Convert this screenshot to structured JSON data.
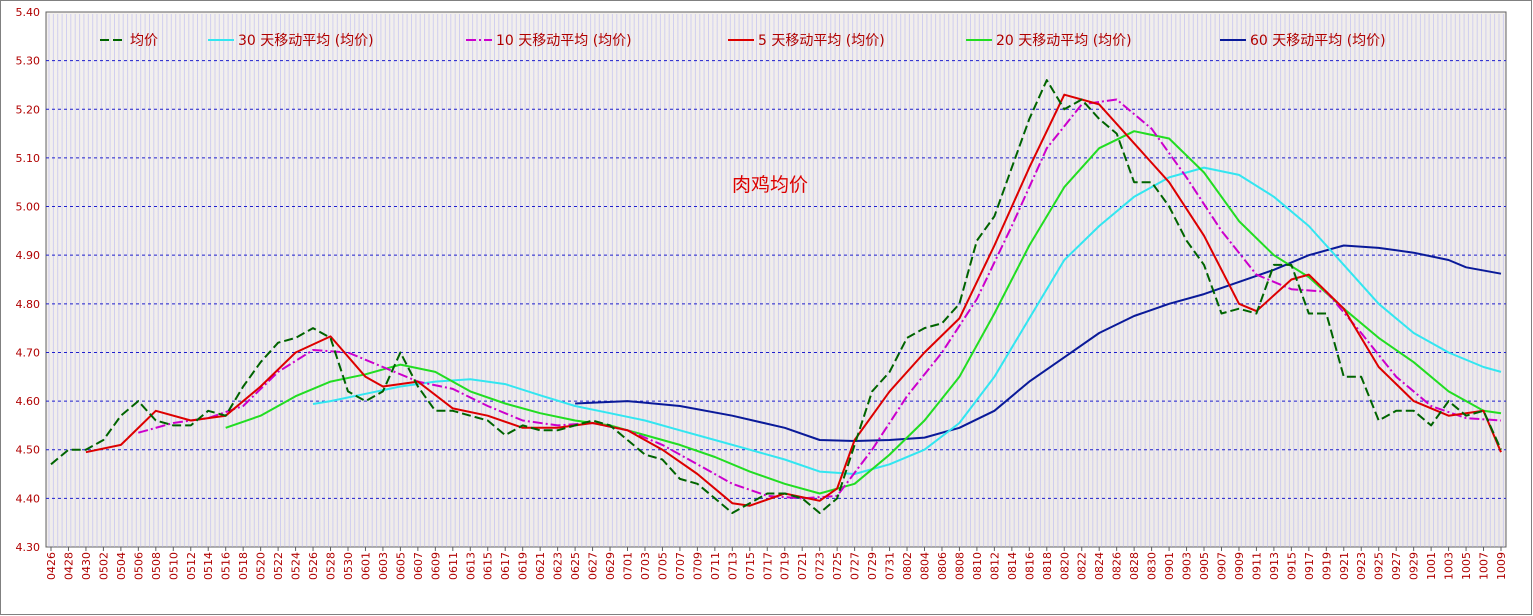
{
  "chart_data": {
    "type": "line",
    "title": "肉鸡均价",
    "ylim": [
      4.3,
      5.4
    ],
    "yticks": [
      "4.30",
      "4.40",
      "4.50",
      "4.60",
      "4.70",
      "4.80",
      "4.90",
      "5.00",
      "5.10",
      "5.20",
      "5.30",
      "5.40"
    ],
    "grid": true,
    "legend_position": "top",
    "colors": {
      "avg": "#006400",
      "ma30": "#33E6F0",
      "ma10": "#CC00CC",
      "ma5": "#DD0000",
      "ma20": "#22DD22",
      "ma60": "#0A1A99",
      "grid": "#1F1FCC",
      "axis_label": "#B00000",
      "title": "#DD0000",
      "bars": "#B4B4F0"
    },
    "x_labels": [
      "0426",
      "0428",
      "0430",
      "0502",
      "0504",
      "0506",
      "0508",
      "0510",
      "0512",
      "0514",
      "0516",
      "0518",
      "0520",
      "0522",
      "0524",
      "0526",
      "0528",
      "0530",
      "0601",
      "0603",
      "0605",
      "0607",
      "0609",
      "0611",
      "0613",
      "0615",
      "0617",
      "0619",
      "0621",
      "0623",
      "0625",
      "0627",
      "0629",
      "0701",
      "0703",
      "0705",
      "0707",
      "0709",
      "0711",
      "0713",
      "0715",
      "0717",
      "0719",
      "0721",
      "0723",
      "0725",
      "0727",
      "0729",
      "0731",
      "0802",
      "0804",
      "0806",
      "0808",
      "0810",
      "0812",
      "0814",
      "0816",
      "0818",
      "0820",
      "0822",
      "0824",
      "0826",
      "0828",
      "0830",
      "0901",
      "0903",
      "0905",
      "0907",
      "0909",
      "0911",
      "0913",
      "0915",
      "0917",
      "0919",
      "0921",
      "0923",
      "0925",
      "0927",
      "0929",
      "1001",
      "1003",
      "1005",
      "1007",
      "1009"
    ],
    "series": [
      {
        "key": "avg",
        "name": "均价",
        "dash": "9,4",
        "width": 2,
        "points": [
          [
            0,
            4.47
          ],
          [
            1,
            4.5
          ],
          [
            2,
            4.5
          ],
          [
            3,
            4.52
          ],
          [
            4,
            4.57
          ],
          [
            5,
            4.6
          ],
          [
            6,
            4.56
          ],
          [
            7,
            4.55
          ],
          [
            8,
            4.55
          ],
          [
            9,
            4.58
          ],
          [
            10,
            4.57
          ],
          [
            11,
            4.63
          ],
          [
            12,
            4.68
          ],
          [
            13,
            4.72
          ],
          [
            14,
            4.73
          ],
          [
            15,
            4.75
          ],
          [
            16,
            4.73
          ],
          [
            17,
            4.62
          ],
          [
            18,
            4.6
          ],
          [
            19,
            4.62
          ],
          [
            20,
            4.7
          ],
          [
            21,
            4.63
          ],
          [
            22,
            4.58
          ],
          [
            23,
            4.58
          ],
          [
            24,
            4.57
          ],
          [
            25,
            4.56
          ],
          [
            26,
            4.53
          ],
          [
            27,
            4.55
          ],
          [
            28,
            4.54
          ],
          [
            29,
            4.54
          ],
          [
            30,
            4.55
          ],
          [
            31,
            4.56
          ],
          [
            32,
            4.55
          ],
          [
            33,
            4.52
          ],
          [
            34,
            4.49
          ],
          [
            35,
            4.48
          ],
          [
            36,
            4.44
          ],
          [
            37,
            4.43
          ],
          [
            38,
            4.4
          ],
          [
            39,
            4.37
          ],
          [
            40,
            4.39
          ],
          [
            41,
            4.41
          ],
          [
            42,
            4.41
          ],
          [
            43,
            4.4
          ],
          [
            44,
            4.37
          ],
          [
            45,
            4.4
          ],
          [
            46,
            4.51
          ],
          [
            47,
            4.62
          ],
          [
            48,
            4.66
          ],
          [
            49,
            4.73
          ],
          [
            50,
            4.75
          ],
          [
            51,
            4.76
          ],
          [
            52,
            4.8
          ],
          [
            53,
            4.93
          ],
          [
            54,
            4.98
          ],
          [
            55,
            5.08
          ],
          [
            56,
            5.18
          ],
          [
            57,
            5.26
          ],
          [
            58,
            5.2
          ],
          [
            59,
            5.22
          ],
          [
            60,
            5.18
          ],
          [
            61,
            5.15
          ],
          [
            62,
            5.05
          ],
          [
            63,
            5.05
          ],
          [
            64,
            5.0
          ],
          [
            65,
            4.93
          ],
          [
            66,
            4.88
          ],
          [
            67,
            4.78
          ],
          [
            68,
            4.79
          ],
          [
            69,
            4.78
          ],
          [
            70,
            4.88
          ],
          [
            71,
            4.88
          ],
          [
            72,
            4.78
          ],
          [
            73,
            4.78
          ],
          [
            74,
            4.65
          ],
          [
            75,
            4.65
          ],
          [
            76,
            4.56
          ],
          [
            77,
            4.58
          ],
          [
            78,
            4.58
          ],
          [
            79,
            4.55
          ],
          [
            80,
            4.6
          ],
          [
            81,
            4.57
          ],
          [
            82,
            4.58
          ],
          [
            83,
            4.5
          ]
        ]
      },
      {
        "key": "ma30",
        "name": "30 天移动平均 (均价)",
        "dash": "",
        "width": 2,
        "points": [
          [
            15,
            4.594
          ],
          [
            16,
            4.6
          ],
          [
            18,
            4.615
          ],
          [
            20,
            4.63
          ],
          [
            22,
            4.64
          ],
          [
            24,
            4.645
          ],
          [
            26,
            4.635
          ],
          [
            28,
            4.612
          ],
          [
            30,
            4.59
          ],
          [
            32,
            4.575
          ],
          [
            34,
            4.56
          ],
          [
            36,
            4.54
          ],
          [
            38,
            4.52
          ],
          [
            40,
            4.5
          ],
          [
            42,
            4.48
          ],
          [
            44,
            4.455
          ],
          [
            46,
            4.45
          ],
          [
            48,
            4.47
          ],
          [
            50,
            4.5
          ],
          [
            52,
            4.555
          ],
          [
            54,
            4.65
          ],
          [
            56,
            4.77
          ],
          [
            58,
            4.89
          ],
          [
            60,
            4.96
          ],
          [
            62,
            5.02
          ],
          [
            64,
            5.06
          ],
          [
            66,
            5.08
          ],
          [
            68,
            5.065
          ],
          [
            70,
            5.02
          ],
          [
            72,
            4.96
          ],
          [
            74,
            4.88
          ],
          [
            76,
            4.8
          ],
          [
            78,
            4.74
          ],
          [
            80,
            4.7
          ],
          [
            82,
            4.67
          ],
          [
            83,
            4.66
          ]
        ]
      },
      {
        "key": "ma10",
        "name": "10 天移动平均 (均价)",
        "dash": "10,3,2,3",
        "width": 2,
        "points": [
          [
            5,
            4.535
          ],
          [
            7,
            4.555
          ],
          [
            9,
            4.565
          ],
          [
            11,
            4.59
          ],
          [
            13,
            4.66
          ],
          [
            15,
            4.705
          ],
          [
            17,
            4.7
          ],
          [
            19,
            4.67
          ],
          [
            21,
            4.64
          ],
          [
            23,
            4.625
          ],
          [
            25,
            4.59
          ],
          [
            27,
            4.56
          ],
          [
            29,
            4.55
          ],
          [
            31,
            4.555
          ],
          [
            33,
            4.54
          ],
          [
            35,
            4.51
          ],
          [
            37,
            4.47
          ],
          [
            39,
            4.43
          ],
          [
            41,
            4.405
          ],
          [
            43,
            4.4
          ],
          [
            45,
            4.405
          ],
          [
            47,
            4.5
          ],
          [
            49,
            4.61
          ],
          [
            51,
            4.7
          ],
          [
            53,
            4.81
          ],
          [
            55,
            4.96
          ],
          [
            57,
            5.12
          ],
          [
            59,
            5.21
          ],
          [
            61,
            5.22
          ],
          [
            63,
            5.16
          ],
          [
            65,
            5.06
          ],
          [
            67,
            4.95
          ],
          [
            69,
            4.86
          ],
          [
            71,
            4.83
          ],
          [
            73,
            4.825
          ],
          [
            75,
            4.74
          ],
          [
            77,
            4.65
          ],
          [
            79,
            4.59
          ],
          [
            81,
            4.565
          ],
          [
            83,
            4.56
          ]
        ]
      },
      {
        "key": "ma5",
        "name": "5 天移动平均 (均价)",
        "dash": "",
        "width": 2,
        "points": [
          [
            2,
            4.495
          ],
          [
            4,
            4.51
          ],
          [
            6,
            4.58
          ],
          [
            8,
            4.56
          ],
          [
            10,
            4.57
          ],
          [
            12,
            4.63
          ],
          [
            14,
            4.7
          ],
          [
            16,
            4.733
          ],
          [
            18,
            4.65
          ],
          [
            19,
            4.63
          ],
          [
            21,
            4.64
          ],
          [
            23,
            4.585
          ],
          [
            25,
            4.57
          ],
          [
            27,
            4.545
          ],
          [
            29,
            4.545
          ],
          [
            31,
            4.555
          ],
          [
            33,
            4.54
          ],
          [
            35,
            4.5
          ],
          [
            37,
            4.45
          ],
          [
            39,
            4.39
          ],
          [
            40,
            4.385
          ],
          [
            42,
            4.41
          ],
          [
            44,
            4.395
          ],
          [
            45,
            4.42
          ],
          [
            46,
            4.52
          ],
          [
            48,
            4.62
          ],
          [
            50,
            4.7
          ],
          [
            52,
            4.77
          ],
          [
            54,
            4.92
          ],
          [
            56,
            5.08
          ],
          [
            58,
            5.23
          ],
          [
            60,
            5.21
          ],
          [
            62,
            5.13
          ],
          [
            64,
            5.05
          ],
          [
            66,
            4.94
          ],
          [
            68,
            4.8
          ],
          [
            69,
            4.785
          ],
          [
            71,
            4.85
          ],
          [
            72,
            4.86
          ],
          [
            74,
            4.79
          ],
          [
            76,
            4.67
          ],
          [
            78,
            4.6
          ],
          [
            80,
            4.57
          ],
          [
            82,
            4.58
          ],
          [
            83,
            4.495
          ]
        ]
      },
      {
        "key": "ma20",
        "name": "20 天移动平均 (均价)",
        "dash": "",
        "width": 2,
        "points": [
          [
            10,
            4.545
          ],
          [
            12,
            4.57
          ],
          [
            14,
            4.61
          ],
          [
            16,
            4.64
          ],
          [
            18,
            4.655
          ],
          [
            20,
            4.675
          ],
          [
            22,
            4.66
          ],
          [
            24,
            4.62
          ],
          [
            26,
            4.595
          ],
          [
            28,
            4.575
          ],
          [
            30,
            4.56
          ],
          [
            32,
            4.55
          ],
          [
            34,
            4.53
          ],
          [
            36,
            4.51
          ],
          [
            38,
            4.485
          ],
          [
            40,
            4.455
          ],
          [
            42,
            4.43
          ],
          [
            44,
            4.41
          ],
          [
            46,
            4.43
          ],
          [
            48,
            4.49
          ],
          [
            50,
            4.56
          ],
          [
            52,
            4.65
          ],
          [
            54,
            4.78
          ],
          [
            56,
            4.92
          ],
          [
            58,
            5.04
          ],
          [
            60,
            5.12
          ],
          [
            62,
            5.155
          ],
          [
            64,
            5.14
          ],
          [
            66,
            5.07
          ],
          [
            68,
            4.97
          ],
          [
            70,
            4.9
          ],
          [
            72,
            4.855
          ],
          [
            74,
            4.79
          ],
          [
            76,
            4.73
          ],
          [
            78,
            4.68
          ],
          [
            80,
            4.62
          ],
          [
            82,
            4.58
          ],
          [
            83,
            4.575
          ]
        ]
      },
      {
        "key": "ma60",
        "name": "60 天移动平均 (均价)",
        "dash": "",
        "width": 2,
        "points": [
          [
            30,
            4.595
          ],
          [
            33,
            4.6
          ],
          [
            36,
            4.59
          ],
          [
            39,
            4.57
          ],
          [
            42,
            4.545
          ],
          [
            44,
            4.52
          ],
          [
            46,
            4.518
          ],
          [
            48,
            4.52
          ],
          [
            50,
            4.525
          ],
          [
            52,
            4.545
          ],
          [
            54,
            4.58
          ],
          [
            56,
            4.64
          ],
          [
            58,
            4.69
          ],
          [
            60,
            4.74
          ],
          [
            62,
            4.775
          ],
          [
            64,
            4.8
          ],
          [
            66,
            4.82
          ],
          [
            68,
            4.845
          ],
          [
            70,
            4.87
          ],
          [
            72,
            4.9
          ],
          [
            74,
            4.92
          ],
          [
            76,
            4.915
          ],
          [
            78,
            4.905
          ],
          [
            80,
            4.89
          ],
          [
            81,
            4.875
          ],
          [
            83,
            4.862
          ]
        ]
      }
    ]
  }
}
